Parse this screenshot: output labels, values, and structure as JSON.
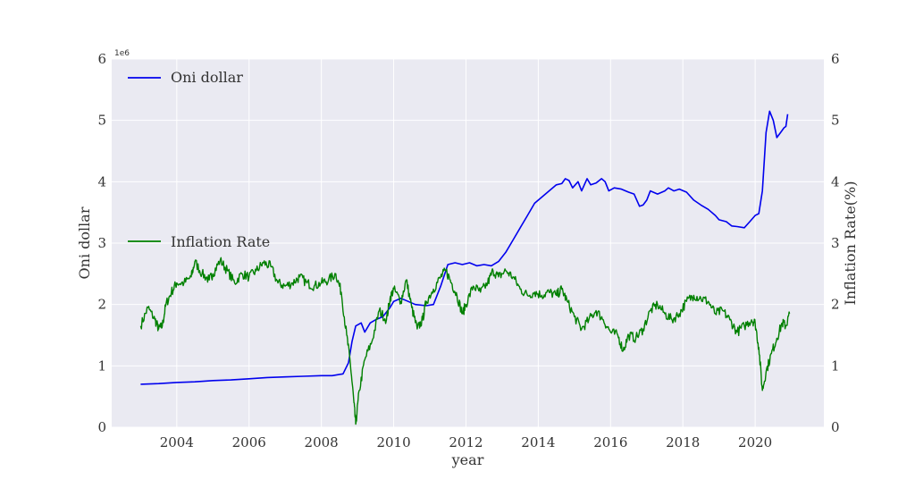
{
  "chart_data": {
    "type": "line",
    "xlabel": "year",
    "ylabel_left": "Oni dollar",
    "ylabel_right": "Inflation Rate(%)",
    "y_left_offset_label": "1e6",
    "xlim": [
      2002.2,
      2021.9
    ],
    "ylim_left": [
      0,
      6
    ],
    "ylim_right": [
      0,
      6
    ],
    "x_ticks": [
      2004,
      2006,
      2008,
      2010,
      2012,
      2014,
      2016,
      2018,
      2020
    ],
    "x_tick_labels": [
      "2004",
      "2006",
      "2008",
      "2010",
      "2012",
      "2014",
      "2016",
      "2018",
      "2020"
    ],
    "y_left_ticks": [
      0,
      1,
      2,
      3,
      4,
      5,
      6
    ],
    "y_left_tick_labels": [
      "0",
      "1",
      "2",
      "3",
      "4",
      "5",
      "6"
    ],
    "y_right_ticks": [
      0,
      1,
      2,
      3,
      4,
      5,
      6
    ],
    "y_right_tick_labels": [
      "0",
      "1",
      "2",
      "3",
      "4",
      "5",
      "6"
    ],
    "grid": true,
    "background": "#EAEAF2",
    "series": [
      {
        "name": "Oni dollar",
        "axis": "left",
        "color": "#0000EE",
        "legend_position": "upper-left",
        "points": [
          [
            2003.0,
            0.7
          ],
          [
            2003.5,
            0.71
          ],
          [
            2004.0,
            0.73
          ],
          [
            2004.5,
            0.74
          ],
          [
            2005.0,
            0.76
          ],
          [
            2005.5,
            0.77
          ],
          [
            2006.0,
            0.79
          ],
          [
            2006.5,
            0.81
          ],
          [
            2007.0,
            0.82
          ],
          [
            2007.5,
            0.83
          ],
          [
            2008.0,
            0.84
          ],
          [
            2008.3,
            0.84
          ],
          [
            2008.6,
            0.87
          ],
          [
            2008.75,
            1.05
          ],
          [
            2008.85,
            1.4
          ],
          [
            2008.95,
            1.65
          ],
          [
            2009.1,
            1.7
          ],
          [
            2009.2,
            1.55
          ],
          [
            2009.35,
            1.7
          ],
          [
            2009.5,
            1.75
          ],
          [
            2009.7,
            1.8
          ],
          [
            2009.9,
            1.95
          ],
          [
            2010.0,
            2.05
          ],
          [
            2010.2,
            2.1
          ],
          [
            2010.4,
            2.05
          ],
          [
            2010.6,
            2.0
          ],
          [
            2010.9,
            1.98
          ],
          [
            2011.1,
            2.0
          ],
          [
            2011.3,
            2.3
          ],
          [
            2011.5,
            2.65
          ],
          [
            2011.7,
            2.68
          ],
          [
            2011.9,
            2.65
          ],
          [
            2012.1,
            2.68
          ],
          [
            2012.3,
            2.63
          ],
          [
            2012.5,
            2.65
          ],
          [
            2012.7,
            2.63
          ],
          [
            2012.9,
            2.7
          ],
          [
            2013.1,
            2.85
          ],
          [
            2013.3,
            3.05
          ],
          [
            2013.5,
            3.25
          ],
          [
            2013.7,
            3.45
          ],
          [
            2013.9,
            3.65
          ],
          [
            2014.1,
            3.75
          ],
          [
            2014.3,
            3.85
          ],
          [
            2014.5,
            3.95
          ],
          [
            2014.65,
            3.97
          ],
          [
            2014.75,
            4.05
          ],
          [
            2014.85,
            4.02
          ],
          [
            2014.95,
            3.9
          ],
          [
            2015.1,
            4.0
          ],
          [
            2015.2,
            3.85
          ],
          [
            2015.35,
            4.05
          ],
          [
            2015.45,
            3.95
          ],
          [
            2015.6,
            3.98
          ],
          [
            2015.75,
            4.05
          ],
          [
            2015.85,
            4.0
          ],
          [
            2015.95,
            3.85
          ],
          [
            2016.1,
            3.9
          ],
          [
            2016.3,
            3.88
          ],
          [
            2016.5,
            3.83
          ],
          [
            2016.65,
            3.8
          ],
          [
            2016.8,
            3.6
          ],
          [
            2016.9,
            3.62
          ],
          [
            2017.0,
            3.7
          ],
          [
            2017.1,
            3.85
          ],
          [
            2017.3,
            3.8
          ],
          [
            2017.5,
            3.85
          ],
          [
            2017.6,
            3.9
          ],
          [
            2017.75,
            3.85
          ],
          [
            2017.9,
            3.88
          ],
          [
            2018.1,
            3.83
          ],
          [
            2018.3,
            3.7
          ],
          [
            2018.5,
            3.62
          ],
          [
            2018.7,
            3.55
          ],
          [
            2018.9,
            3.45
          ],
          [
            2019.0,
            3.38
          ],
          [
            2019.2,
            3.35
          ],
          [
            2019.35,
            3.28
          ],
          [
            2019.5,
            3.27
          ],
          [
            2019.7,
            3.25
          ],
          [
            2019.85,
            3.35
          ],
          [
            2020.0,
            3.45
          ],
          [
            2020.1,
            3.48
          ],
          [
            2020.2,
            3.85
          ],
          [
            2020.3,
            4.8
          ],
          [
            2020.4,
            5.15
          ],
          [
            2020.5,
            5.0
          ],
          [
            2020.6,
            4.72
          ],
          [
            2020.7,
            4.8
          ],
          [
            2020.8,
            4.88
          ],
          [
            2020.85,
            4.9
          ],
          [
            2020.9,
            5.1
          ]
        ]
      },
      {
        "name": "Inflation Rate",
        "axis": "right",
        "color": "#008000",
        "legend_position": "center-left",
        "noisy": true,
        "points": [
          [
            2003.0,
            1.65
          ],
          [
            2003.2,
            1.95
          ],
          [
            2003.4,
            1.75
          ],
          [
            2003.5,
            1.6
          ],
          [
            2003.6,
            1.65
          ],
          [
            2003.7,
            2.0
          ],
          [
            2003.85,
            2.2
          ],
          [
            2004.0,
            2.35
          ],
          [
            2004.2,
            2.35
          ],
          [
            2004.4,
            2.45
          ],
          [
            2004.5,
            2.7
          ],
          [
            2004.7,
            2.5
          ],
          [
            2004.9,
            2.4
          ],
          [
            2005.0,
            2.5
          ],
          [
            2005.2,
            2.72
          ],
          [
            2005.4,
            2.55
          ],
          [
            2005.6,
            2.35
          ],
          [
            2005.8,
            2.5
          ],
          [
            2006.0,
            2.45
          ],
          [
            2006.2,
            2.55
          ],
          [
            2006.4,
            2.68
          ],
          [
            2006.6,
            2.62
          ],
          [
            2006.8,
            2.35
          ],
          [
            2007.0,
            2.3
          ],
          [
            2007.2,
            2.35
          ],
          [
            2007.4,
            2.45
          ],
          [
            2007.6,
            2.35
          ],
          [
            2007.8,
            2.3
          ],
          [
            2008.0,
            2.35
          ],
          [
            2008.2,
            2.4
          ],
          [
            2008.4,
            2.5
          ],
          [
            2008.55,
            2.2
          ],
          [
            2008.7,
            1.5
          ],
          [
            2008.8,
            1.05
          ],
          [
            2008.9,
            0.4
          ],
          [
            2008.95,
            0.05
          ],
          [
            2009.05,
            0.6
          ],
          [
            2009.2,
            1.1
          ],
          [
            2009.4,
            1.4
          ],
          [
            2009.6,
            1.9
          ],
          [
            2009.8,
            1.75
          ],
          [
            2009.9,
            2.1
          ],
          [
            2010.0,
            2.25
          ],
          [
            2010.2,
            2.05
          ],
          [
            2010.35,
            2.4
          ],
          [
            2010.5,
            1.95
          ],
          [
            2010.65,
            1.6
          ],
          [
            2010.8,
            1.75
          ],
          [
            2010.9,
            2.05
          ],
          [
            2011.1,
            2.25
          ],
          [
            2011.3,
            2.45
          ],
          [
            2011.45,
            2.55
          ],
          [
            2011.6,
            2.35
          ],
          [
            2011.75,
            2.15
          ],
          [
            2011.9,
            1.85
          ],
          [
            2012.0,
            2.0
          ],
          [
            2012.2,
            2.3
          ],
          [
            2012.4,
            2.2
          ],
          [
            2012.6,
            2.35
          ],
          [
            2012.75,
            2.55
          ],
          [
            2012.9,
            2.45
          ],
          [
            2013.1,
            2.55
          ],
          [
            2013.3,
            2.45
          ],
          [
            2013.5,
            2.25
          ],
          [
            2013.7,
            2.15
          ],
          [
            2013.9,
            2.2
          ],
          [
            2014.1,
            2.15
          ],
          [
            2014.3,
            2.2
          ],
          [
            2014.5,
            2.15
          ],
          [
            2014.65,
            2.25
          ],
          [
            2014.8,
            2.05
          ],
          [
            2015.0,
            1.8
          ],
          [
            2015.2,
            1.6
          ],
          [
            2015.4,
            1.75
          ],
          [
            2015.6,
            1.9
          ],
          [
            2015.8,
            1.75
          ],
          [
            2016.0,
            1.55
          ],
          [
            2016.2,
            1.5
          ],
          [
            2016.35,
            1.25
          ],
          [
            2016.5,
            1.5
          ],
          [
            2016.7,
            1.45
          ],
          [
            2016.9,
            1.6
          ],
          [
            2017.1,
            1.9
          ],
          [
            2017.3,
            2.0
          ],
          [
            2017.5,
            1.85
          ],
          [
            2017.7,
            1.75
          ],
          [
            2017.9,
            1.85
          ],
          [
            2018.1,
            2.05
          ],
          [
            2018.3,
            2.15
          ],
          [
            2018.5,
            2.1
          ],
          [
            2018.7,
            2.05
          ],
          [
            2018.9,
            1.85
          ],
          [
            2019.1,
            1.9
          ],
          [
            2019.3,
            1.75
          ],
          [
            2019.5,
            1.55
          ],
          [
            2019.7,
            1.65
          ],
          [
            2019.9,
            1.75
          ],
          [
            2020.0,
            1.7
          ],
          [
            2020.1,
            1.3
          ],
          [
            2020.2,
            0.6
          ],
          [
            2020.3,
            0.9
          ],
          [
            2020.45,
            1.2
          ],
          [
            2020.6,
            1.45
          ],
          [
            2020.75,
            1.7
          ],
          [
            2020.85,
            1.65
          ],
          [
            2020.95,
            1.85
          ]
        ]
      }
    ]
  }
}
